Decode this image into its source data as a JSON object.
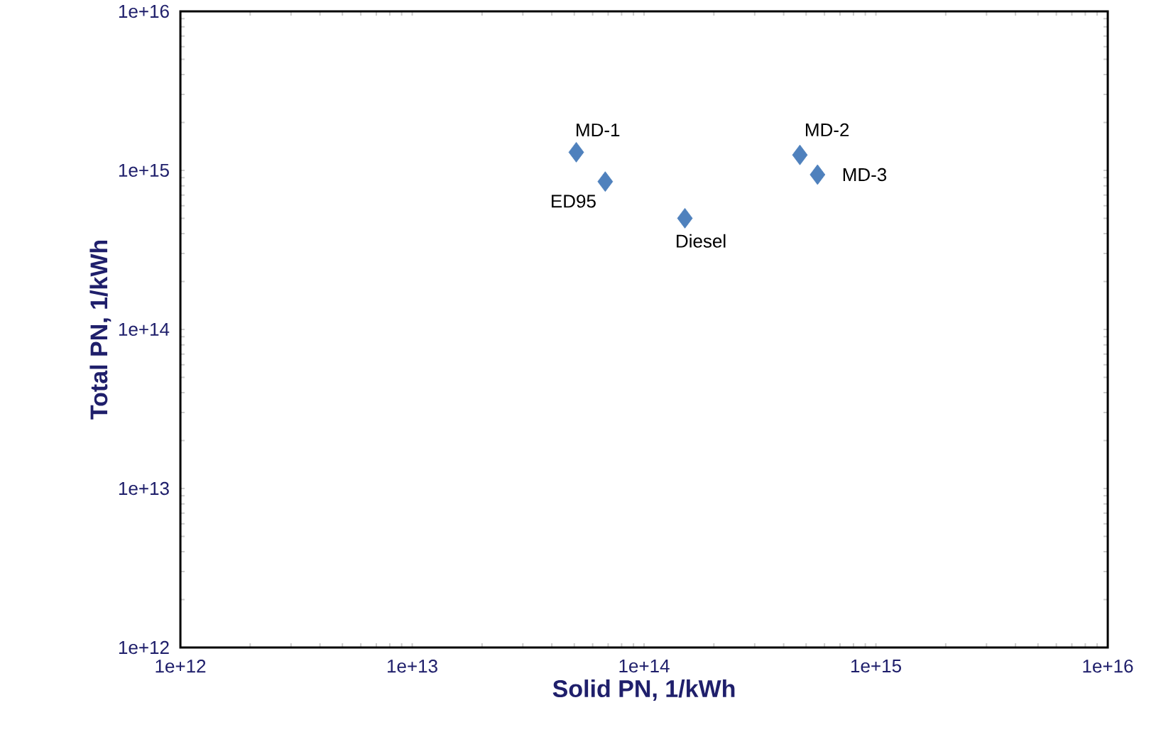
{
  "chart_data": {
    "type": "scatter",
    "xlabel": "Solid PN, 1/kWh",
    "ylabel": "Total PN, 1/kWh",
    "log": "xy",
    "grid": false,
    "marker": "diamond",
    "xlim": [
      1000000000000.0,
      1e+16
    ],
    "ylim": [
      1000000000000.0,
      1e+16
    ],
    "xticks": [
      {
        "value": 1000000000000.0,
        "label": "1e+12"
      },
      {
        "value": 10000000000000.0,
        "label": "1e+13"
      },
      {
        "value": 100000000000000.0,
        "label": "1e+14"
      },
      {
        "value": 1000000000000000.0,
        "label": "1e+15"
      },
      {
        "value": 1e+16,
        "label": "1e+16"
      }
    ],
    "yticks": [
      {
        "value": 1000000000000.0,
        "label": "1e+12"
      },
      {
        "value": 10000000000000.0,
        "label": "1e+13"
      },
      {
        "value": 100000000000000.0,
        "label": "1e+14"
      },
      {
        "value": 1000000000000000.0,
        "label": "1e+15"
      },
      {
        "value": 1e+16,
        "label": "1e+16"
      }
    ],
    "series": [
      {
        "color": "#4f81bd",
        "x": [
          51000000000000.0,
          68000000000000.0,
          150000000000000.0,
          470000000000000.0,
          560000000000000.0
        ],
        "values": [
          1300000000000000.0,
          850000000000000.0,
          500000000000000.0,
          1250000000000000.0,
          940000000000000.0
        ]
      }
    ],
    "annotations": [
      {
        "text": "MD-1",
        "x": 51000000000000.0,
        "y": 1300000000000000.0
      },
      {
        "text": "ED95",
        "x": 68000000000000.0,
        "y": 850000000000000.0
      },
      {
        "text": "Diesel",
        "x": 150000000000000.0,
        "y": 500000000000000.0
      },
      {
        "text": "MD-2",
        "x": 470000000000000.0,
        "y": 1250000000000000.0
      },
      {
        "text": "MD-3",
        "x": 560000000000000.0,
        "y": 940000000000000.0
      }
    ]
  }
}
